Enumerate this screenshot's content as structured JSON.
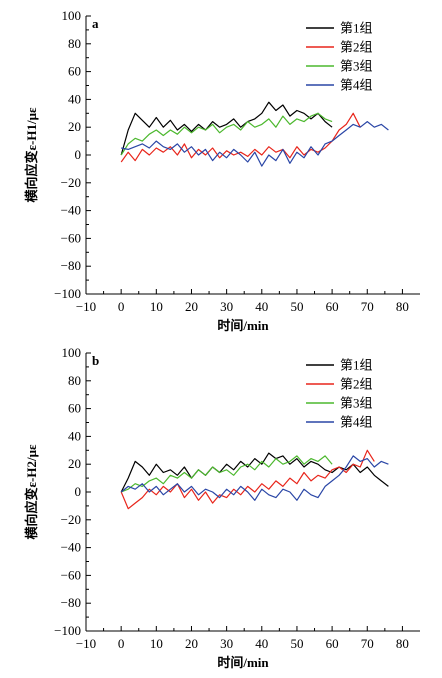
{
  "chart_data": [
    {
      "type": "line",
      "panel_label": "a",
      "xlabel": "时间/min",
      "ylabel": "横向应变ε-H1/με",
      "xlim": [
        -10,
        85
      ],
      "ylim": [
        -100,
        100
      ],
      "x_ticks": [
        "−10",
        "0",
        "10",
        "20",
        "30",
        "40",
        "50",
        "60",
        "70",
        "80"
      ],
      "y_ticks": [
        "100",
        "80",
        "60",
        "40",
        "20",
        "0",
        "−20",
        "−40",
        "−60",
        "−80",
        "−100"
      ],
      "legend_position": "top-right",
      "series": [
        {
          "name": "第1组",
          "color": "#000000",
          "x": [
            0,
            2,
            4,
            6,
            8,
            10,
            12,
            14,
            16,
            18,
            20,
            22,
            24,
            26,
            28,
            30,
            32,
            34,
            36,
            38,
            40,
            42,
            44,
            46,
            48,
            50,
            52,
            54,
            56,
            58,
            60
          ],
          "y": [
            0,
            18,
            30,
            25,
            20,
            27,
            20,
            25,
            18,
            22,
            17,
            22,
            18,
            24,
            20,
            22,
            26,
            20,
            24,
            26,
            30,
            38,
            32,
            36,
            28,
            32,
            30,
            26,
            30,
            24,
            20
          ]
        },
        {
          "name": "第2组",
          "color": "#e8251b",
          "x": [
            0,
            2,
            4,
            6,
            8,
            10,
            12,
            14,
            16,
            18,
            20,
            22,
            24,
            26,
            28,
            30,
            32,
            34,
            36,
            38,
            40,
            42,
            44,
            46,
            48,
            50,
            52,
            54,
            56,
            58,
            60,
            62,
            64,
            66,
            68
          ],
          "y": [
            -5,
            2,
            -4,
            4,
            0,
            5,
            2,
            6,
            0,
            8,
            -2,
            4,
            0,
            5,
            -2,
            3,
            0,
            2,
            -1,
            4,
            0,
            6,
            2,
            4,
            -2,
            6,
            0,
            4,
            2,
            5,
            10,
            18,
            22,
            30,
            20
          ]
        },
        {
          "name": "第3组",
          "color": "#4cb82e",
          "x": [
            0,
            2,
            4,
            6,
            8,
            10,
            12,
            14,
            16,
            18,
            20,
            22,
            24,
            26,
            28,
            30,
            32,
            34,
            36,
            38,
            40,
            42,
            44,
            46,
            48,
            50,
            52,
            54,
            56,
            58,
            60
          ],
          "y": [
            0,
            8,
            12,
            10,
            15,
            18,
            14,
            18,
            15,
            20,
            16,
            20,
            18,
            22,
            16,
            20,
            22,
            18,
            24,
            20,
            22,
            26,
            20,
            28,
            22,
            26,
            24,
            28,
            30,
            26,
            24
          ]
        },
        {
          "name": "第4组",
          "color": "#2a46a6",
          "x": [
            0,
            2,
            4,
            6,
            8,
            10,
            12,
            14,
            16,
            18,
            20,
            22,
            24,
            26,
            28,
            30,
            32,
            34,
            36,
            38,
            40,
            42,
            44,
            46,
            48,
            50,
            52,
            54,
            56,
            58,
            60,
            62,
            64,
            66,
            68,
            70,
            72,
            74,
            76
          ],
          "y": [
            5,
            4,
            6,
            8,
            5,
            10,
            6,
            4,
            8,
            2,
            6,
            0,
            4,
            -4,
            2,
            -2,
            4,
            0,
            -5,
            2,
            -8,
            0,
            -4,
            4,
            -6,
            2,
            -2,
            6,
            0,
            8,
            10,
            14,
            18,
            22,
            20,
            24,
            20,
            22,
            18
          ]
        }
      ]
    },
    {
      "type": "line",
      "panel_label": "b",
      "xlabel": "时间/min",
      "ylabel": "横向应变ε-H2/με",
      "xlim": [
        -10,
        85
      ],
      "ylim": [
        -100,
        100
      ],
      "x_ticks": [
        "−10",
        "0",
        "10",
        "20",
        "30",
        "40",
        "50",
        "60",
        "70",
        "80"
      ],
      "y_ticks": [
        "100",
        "80",
        "60",
        "40",
        "20",
        "0",
        "−20",
        "−40",
        "−60",
        "−80",
        "−100"
      ],
      "legend_position": "top-right",
      "series": [
        {
          "name": "第1组",
          "color": "#000000",
          "x": [
            0,
            2,
            4,
            6,
            8,
            10,
            12,
            14,
            16,
            18,
            20,
            22,
            24,
            26,
            28,
            30,
            32,
            34,
            36,
            38,
            40,
            42,
            44,
            46,
            48,
            50,
            52,
            54,
            56,
            58,
            60,
            62,
            64,
            66,
            68,
            70,
            72,
            74,
            76
          ],
          "y": [
            0,
            10,
            22,
            18,
            12,
            20,
            14,
            16,
            12,
            18,
            10,
            16,
            12,
            18,
            14,
            20,
            16,
            22,
            18,
            24,
            20,
            28,
            24,
            26,
            20,
            24,
            18,
            22,
            20,
            16,
            14,
            18,
            16,
            20,
            14,
            18,
            12,
            8,
            4
          ]
        },
        {
          "name": "第2组",
          "color": "#e8251b",
          "x": [
            0,
            2,
            4,
            6,
            8,
            10,
            12,
            14,
            16,
            18,
            20,
            22,
            24,
            26,
            28,
            30,
            32,
            34,
            36,
            38,
            40,
            42,
            44,
            46,
            48,
            50,
            52,
            54,
            56,
            58,
            60,
            62,
            64,
            66,
            68,
            70,
            72
          ],
          "y": [
            0,
            -12,
            -8,
            -4,
            2,
            -2,
            4,
            0,
            6,
            -4,
            2,
            -6,
            0,
            -8,
            -2,
            -4,
            2,
            -2,
            4,
            0,
            6,
            2,
            8,
            4,
            10,
            6,
            14,
            8,
            12,
            10,
            16,
            18,
            14,
            20,
            18,
            30,
            22
          ]
        },
        {
          "name": "第3组",
          "color": "#4cb82e",
          "x": [
            0,
            2,
            4,
            6,
            8,
            10,
            12,
            14,
            16,
            18,
            20,
            22,
            24,
            26,
            28,
            30,
            32,
            34,
            36,
            38,
            40,
            42,
            44,
            46,
            48,
            50,
            52,
            54,
            56,
            58,
            60
          ],
          "y": [
            0,
            2,
            6,
            4,
            8,
            10,
            6,
            12,
            10,
            14,
            10,
            16,
            12,
            18,
            14,
            16,
            12,
            18,
            20,
            16,
            22,
            18,
            24,
            20,
            22,
            26,
            20,
            24,
            22,
            26,
            20
          ]
        },
        {
          "name": "第4组",
          "color": "#2a46a6",
          "x": [
            0,
            2,
            4,
            6,
            8,
            10,
            12,
            14,
            16,
            18,
            20,
            22,
            24,
            26,
            28,
            30,
            32,
            34,
            36,
            38,
            40,
            42,
            44,
            46,
            48,
            50,
            52,
            54,
            56,
            58,
            60,
            62,
            64,
            66,
            68,
            70,
            72,
            74,
            76
          ],
          "y": [
            0,
            4,
            2,
            6,
            0,
            4,
            -2,
            2,
            6,
            0,
            4,
            -2,
            2,
            0,
            -4,
            2,
            -2,
            4,
            0,
            -6,
            2,
            -2,
            -4,
            2,
            0,
            -6,
            2,
            -2,
            -4,
            4,
            8,
            12,
            18,
            26,
            22,
            24,
            18,
            22,
            20
          ]
        }
      ]
    }
  ]
}
